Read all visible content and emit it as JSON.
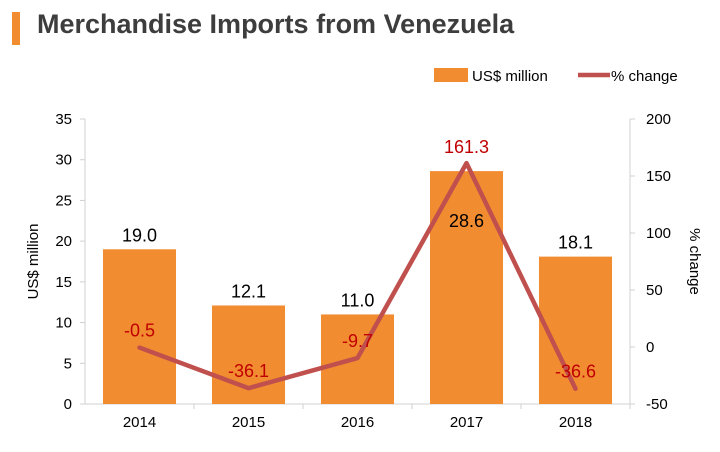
{
  "title": "Merchandise Imports from Venezuela",
  "colors": {
    "bar": "#f28c30",
    "line": "#c0504d",
    "line_label": "#c00000",
    "title_accent": "#f28c30",
    "axis": "#d0d0d0",
    "text": "#000000"
  },
  "chart_data": {
    "type": "bar",
    "categories": [
      "2014",
      "2015",
      "2016",
      "2017",
      "2018"
    ],
    "series": [
      {
        "name": "US$ million",
        "type": "bar",
        "axis": "left",
        "values": [
          19.0,
          12.1,
          11.0,
          28.6,
          18.1
        ],
        "labels": [
          "19.0",
          "12.1",
          "11.0",
          "28.6",
          "18.1"
        ]
      },
      {
        "name": "% change",
        "type": "line",
        "axis": "right",
        "values": [
          -0.5,
          -36.1,
          -9.7,
          161.3,
          -36.6
        ],
        "labels": [
          "-0.5",
          "-36.1",
          "-9.7",
          "161.3",
          "-36.6"
        ]
      }
    ],
    "ylabel": "US$ million",
    "ylabel_right": "% change",
    "ylim": [
      0,
      35
    ],
    "ylim_right": [
      -50,
      200
    ],
    "yticks": [
      "0",
      "5",
      "10",
      "15",
      "20",
      "25",
      "30",
      "35"
    ],
    "yticks_right": [
      "-50",
      "0",
      "50",
      "100",
      "150",
      "200"
    ],
    "legend_position": "top-right",
    "grid": false
  }
}
